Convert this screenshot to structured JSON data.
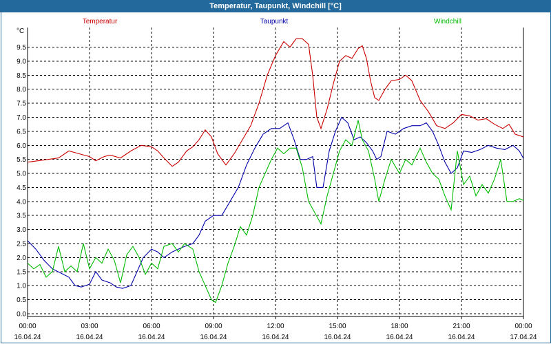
{
  "window": {
    "title": "Temperatur, Taupunkt, Windchill [°C]"
  },
  "chart_data": {
    "type": "line",
    "title": "Temperatur, Taupunkt, Windchill [°C]",
    "ylabel": "°C",
    "ylim": [
      -0.1,
      10.2
    ],
    "xlim": [
      0,
      24
    ],
    "grid": true,
    "legend_position": "top",
    "y_ticks": [
      "0.0",
      "0.5",
      "1.0",
      "1.5",
      "2.0",
      "2.5",
      "3.0",
      "3.5",
      "4.0",
      "4.5",
      "5.0",
      "5.5",
      "6.0",
      "6.5",
      "7.0",
      "7.5",
      "8.0",
      "8.5",
      "9.0",
      "9.5"
    ],
    "x_ticks": [
      {
        "time": "00:00",
        "date": "16.04.24"
      },
      {
        "time": "03:00",
        "date": "16.04.24"
      },
      {
        "time": "06:00",
        "date": "16.04.24"
      },
      {
        "time": "09:00",
        "date": "16.04.24"
      },
      {
        "time": "12:00",
        "date": "16.04.24"
      },
      {
        "time": "15:00",
        "date": "16.04.24"
      },
      {
        "time": "18:00",
        "date": "16.04.24"
      },
      {
        "time": "21:00",
        "date": "16.04.24"
      },
      {
        "time": "00:00",
        "date": "17.04.24"
      }
    ],
    "series": [
      {
        "name": "Temperatur",
        "color": "#cc0000",
        "points": [
          [
            0,
            5.4
          ],
          [
            0.5,
            5.45
          ],
          [
            1,
            5.5
          ],
          [
            1.5,
            5.55
          ],
          [
            2,
            5.8
          ],
          [
            2.5,
            5.7
          ],
          [
            3,
            5.6
          ],
          [
            3.3,
            5.45
          ],
          [
            3.7,
            5.6
          ],
          [
            4,
            5.65
          ],
          [
            4.5,
            5.55
          ],
          [
            5,
            5.8
          ],
          [
            5.5,
            6.0
          ],
          [
            6,
            5.95
          ],
          [
            6.3,
            5.8
          ],
          [
            6.6,
            5.55
          ],
          [
            7,
            5.25
          ],
          [
            7.3,
            5.4
          ],
          [
            7.7,
            5.8
          ],
          [
            8,
            5.95
          ],
          [
            8.3,
            6.2
          ],
          [
            8.6,
            6.55
          ],
          [
            8.9,
            6.3
          ],
          [
            9.2,
            5.7
          ],
          [
            9.6,
            5.3
          ],
          [
            10,
            5.7
          ],
          [
            10.4,
            6.2
          ],
          [
            10.8,
            6.7
          ],
          [
            11.2,
            7.5
          ],
          [
            11.6,
            8.5
          ],
          [
            12,
            9.2
          ],
          [
            12.4,
            9.7
          ],
          [
            12.7,
            9.5
          ],
          [
            13,
            9.8
          ],
          [
            13.3,
            9.8
          ],
          [
            13.6,
            9.6
          ],
          [
            13.8,
            8.5
          ],
          [
            14,
            7.0
          ],
          [
            14.2,
            6.6
          ],
          [
            14.5,
            7.3
          ],
          [
            14.8,
            8.2
          ],
          [
            15.1,
            9.0
          ],
          [
            15.4,
            9.2
          ],
          [
            15.7,
            9.1
          ],
          [
            16,
            9.45
          ],
          [
            16.2,
            9.55
          ],
          [
            16.4,
            9.1
          ],
          [
            16.6,
            8.3
          ],
          [
            16.8,
            7.7
          ],
          [
            17,
            7.6
          ],
          [
            17.3,
            8.0
          ],
          [
            17.6,
            8.3
          ],
          [
            18,
            8.35
          ],
          [
            18.3,
            8.5
          ],
          [
            18.6,
            8.3
          ],
          [
            19,
            7.6
          ],
          [
            19.4,
            7.2
          ],
          [
            19.8,
            6.7
          ],
          [
            20.2,
            6.6
          ],
          [
            20.6,
            6.8
          ],
          [
            21,
            7.1
          ],
          [
            21.4,
            7.05
          ],
          [
            21.8,
            6.9
          ],
          [
            22.2,
            6.95
          ],
          [
            22.6,
            6.75
          ],
          [
            23,
            6.6
          ],
          [
            23.3,
            6.75
          ],
          [
            23.6,
            6.4
          ],
          [
            24,
            6.3
          ],
          [
            24.4,
            6.4
          ],
          [
            24.8,
            6.6
          ],
          [
            25.2,
            6.9
          ]
        ]
      },
      {
        "name": "Taupunkt",
        "color": "#0000aa",
        "points": [
          [
            0,
            2.6
          ],
          [
            0.4,
            2.3
          ],
          [
            0.8,
            1.9
          ],
          [
            1.2,
            1.6
          ],
          [
            1.6,
            1.45
          ],
          [
            2,
            1.3
          ],
          [
            2.3,
            1.0
          ],
          [
            2.6,
            0.95
          ],
          [
            3,
            1.05
          ],
          [
            3.3,
            1.5
          ],
          [
            3.6,
            1.2
          ],
          [
            4,
            1.1
          ],
          [
            4.3,
            0.95
          ],
          [
            4.6,
            0.9
          ],
          [
            5,
            1.0
          ],
          [
            5.3,
            1.5
          ],
          [
            5.6,
            2.0
          ],
          [
            6,
            2.3
          ],
          [
            6.3,
            2.2
          ],
          [
            6.6,
            2.0
          ],
          [
            7,
            2.2
          ],
          [
            7.3,
            2.3
          ],
          [
            7.6,
            2.4
          ],
          [
            8,
            2.5
          ],
          [
            8.3,
            2.8
          ],
          [
            8.6,
            3.3
          ],
          [
            9,
            3.5
          ],
          [
            9.4,
            3.5
          ],
          [
            9.8,
            4.0
          ],
          [
            10.2,
            4.5
          ],
          [
            10.6,
            5.3
          ],
          [
            11,
            5.9
          ],
          [
            11.4,
            6.4
          ],
          [
            11.8,
            6.6
          ],
          [
            12.2,
            6.6
          ],
          [
            12.6,
            6.8
          ],
          [
            12.9,
            6.2
          ],
          [
            13.2,
            5.5
          ],
          [
            13.5,
            5.5
          ],
          [
            13.8,
            5.6
          ],
          [
            14,
            4.5
          ],
          [
            14.3,
            4.5
          ],
          [
            14.6,
            5.8
          ],
          [
            14.9,
            6.5
          ],
          [
            15.2,
            7.0
          ],
          [
            15.5,
            6.8
          ],
          [
            15.8,
            6.2
          ],
          [
            16.1,
            6.3
          ],
          [
            16.4,
            6.1
          ],
          [
            16.7,
            5.8
          ],
          [
            16.9,
            5.5
          ],
          [
            17.1,
            5.6
          ],
          [
            17.4,
            6.5
          ],
          [
            17.8,
            6.4
          ],
          [
            18.2,
            6.6
          ],
          [
            18.6,
            6.7
          ],
          [
            19,
            6.7
          ],
          [
            19.3,
            6.8
          ],
          [
            19.6,
            6.5
          ],
          [
            19.9,
            6.0
          ],
          [
            20.2,
            5.4
          ],
          [
            20.5,
            5.0
          ],
          [
            20.8,
            5.2
          ],
          [
            21.1,
            5.8
          ],
          [
            21.5,
            5.75
          ],
          [
            21.9,
            5.85
          ],
          [
            22.3,
            6.0
          ],
          [
            22.7,
            5.9
          ],
          [
            23.1,
            5.85
          ],
          [
            23.5,
            6.0
          ],
          [
            23.8,
            5.8
          ],
          [
            24.1,
            5.4
          ],
          [
            24.4,
            5.4
          ],
          [
            24.8,
            5.6
          ],
          [
            25.2,
            5.5
          ]
        ]
      },
      {
        "name": "Windchill",
        "color": "#00bb00",
        "points": [
          [
            0,
            1.8
          ],
          [
            0.3,
            1.6
          ],
          [
            0.6,
            1.75
          ],
          [
            0.9,
            1.3
          ],
          [
            1.2,
            1.5
          ],
          [
            1.5,
            2.4
          ],
          [
            1.8,
            1.5
          ],
          [
            2.1,
            1.7
          ],
          [
            2.4,
            1.5
          ],
          [
            2.7,
            2.5
          ],
          [
            3,
            1.6
          ],
          [
            3.3,
            2.0
          ],
          [
            3.6,
            1.8
          ],
          [
            3.9,
            2.3
          ],
          [
            4.2,
            1.9
          ],
          [
            4.5,
            1.1
          ],
          [
            4.8,
            2.1
          ],
          [
            5.1,
            2.4
          ],
          [
            5.4,
            2.0
          ],
          [
            5.7,
            1.4
          ],
          [
            6,
            1.8
          ],
          [
            6.3,
            1.6
          ],
          [
            6.6,
            2.4
          ],
          [
            7,
            2.5
          ],
          [
            7.3,
            2.2
          ],
          [
            7.6,
            2.5
          ],
          [
            8,
            2.3
          ],
          [
            8.3,
            1.5
          ],
          [
            8.6,
            1.0
          ],
          [
            8.9,
            0.5
          ],
          [
            9.1,
            0.4
          ],
          [
            9.4,
            1.0
          ],
          [
            9.7,
            1.8
          ],
          [
            10,
            2.4
          ],
          [
            10.3,
            3.1
          ],
          [
            10.6,
            2.8
          ],
          [
            10.9,
            3.5
          ],
          [
            11.2,
            4.5
          ],
          [
            11.5,
            5.0
          ],
          [
            11.8,
            5.5
          ],
          [
            12.1,
            5.9
          ],
          [
            12.4,
            5.7
          ],
          [
            12.7,
            5.9
          ],
          [
            13,
            5.9
          ],
          [
            13.3,
            5.2
          ],
          [
            13.6,
            4.0
          ],
          [
            13.9,
            3.6
          ],
          [
            14.2,
            3.2
          ],
          [
            14.5,
            4.2
          ],
          [
            14.8,
            5.0
          ],
          [
            15.1,
            5.8
          ],
          [
            15.4,
            6.2
          ],
          [
            15.7,
            6.0
          ],
          [
            16,
            6.9
          ],
          [
            16.2,
            6.2
          ],
          [
            16.5,
            5.8
          ],
          [
            16.8,
            4.8
          ],
          [
            17,
            4.0
          ],
          [
            17.3,
            4.8
          ],
          [
            17.6,
            5.5
          ],
          [
            18,
            5.0
          ],
          [
            18.3,
            5.5
          ],
          [
            18.6,
            5.3
          ],
          [
            19,
            5.9
          ],
          [
            19.3,
            5.4
          ],
          [
            19.6,
            5.0
          ],
          [
            19.9,
            4.8
          ],
          [
            20.2,
            4.2
          ],
          [
            20.5,
            3.7
          ],
          [
            20.8,
            5.8
          ],
          [
            21.1,
            4.6
          ],
          [
            21.4,
            4.9
          ],
          [
            21.7,
            4.2
          ],
          [
            22,
            4.6
          ],
          [
            22.3,
            4.3
          ],
          [
            22.6,
            4.8
          ],
          [
            22.9,
            5.5
          ],
          [
            23.2,
            4.0
          ],
          [
            23.5,
            4.0
          ],
          [
            23.8,
            4.1
          ],
          [
            24.1,
            4.0
          ],
          [
            24.4,
            4.2
          ],
          [
            24.7,
            3.8
          ],
          [
            25,
            4.6
          ],
          [
            25.2,
            4.6
          ]
        ]
      }
    ]
  }
}
